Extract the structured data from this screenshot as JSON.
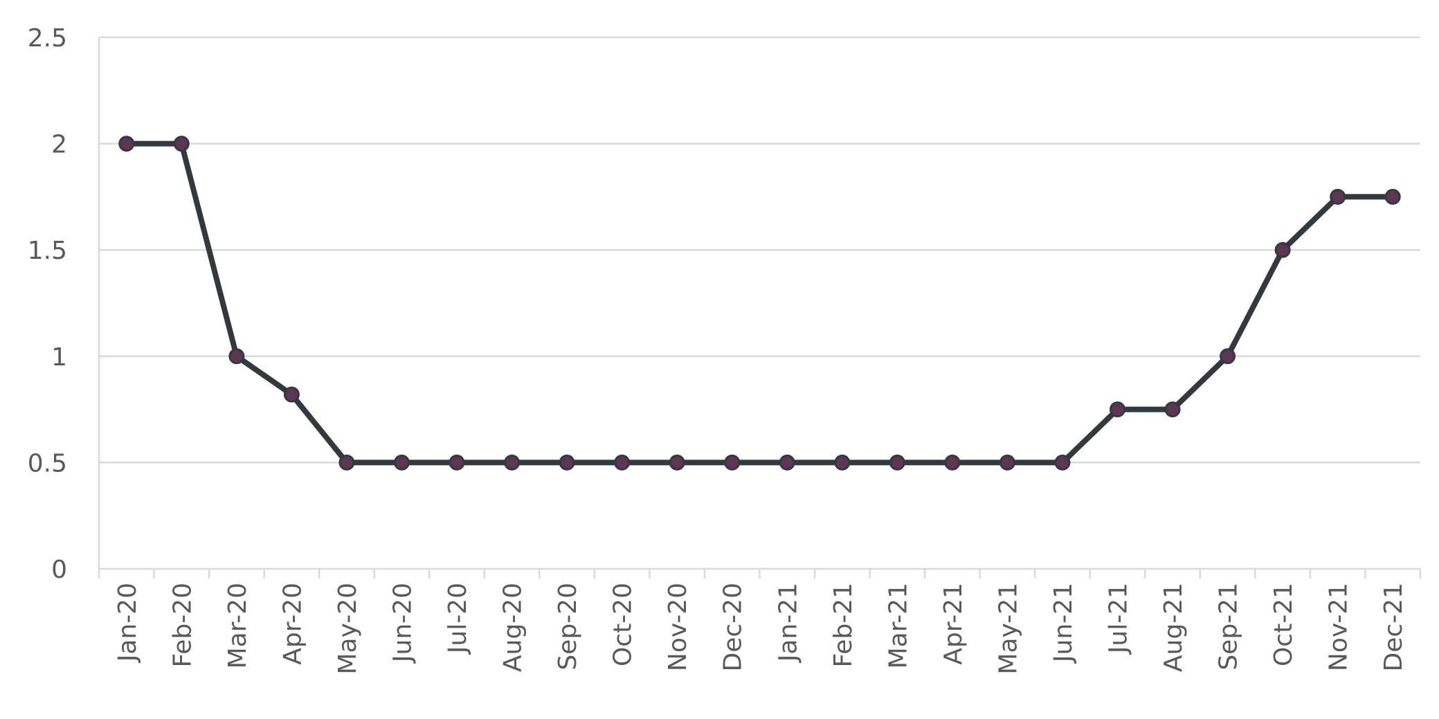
{
  "chart_data": {
    "type": "line",
    "title": "",
    "xlabel": "",
    "ylabel": "",
    "categories": [
      "Jan-20",
      "Feb-20",
      "Mar-20",
      "Apr-20",
      "May-20",
      "Jun-20",
      "Jul-20",
      "Aug-20",
      "Sep-20",
      "Oct-20",
      "Nov-20",
      "Dec-20",
      "Jan-21",
      "Feb-21",
      "Mar-21",
      "Apr-21",
      "May-21",
      "Jun-21",
      "Jul-21",
      "Aug-21",
      "Sep-21",
      "Oct-21",
      "Nov-21",
      "Dec-21"
    ],
    "series": [
      {
        "values": [
          2,
          2,
          1,
          0.82,
          0.5,
          0.5,
          0.5,
          0.5,
          0.5,
          0.5,
          0.5,
          0.5,
          0.5,
          0.5,
          0.5,
          0.5,
          0.5,
          0.5,
          0.75,
          0.75,
          1,
          1.5,
          1.75,
          1.75
        ]
      }
    ],
    "ylim": [
      0,
      2.5
    ],
    "yticks": [
      "0",
      "0.5",
      "1",
      "1.5",
      "2",
      "2.5"
    ],
    "grid": true,
    "legend": "none",
    "colors": {
      "line": "#323a3f",
      "marker": "#5e3553",
      "grid": "#d9d9d9",
      "text": "#595959"
    }
  }
}
